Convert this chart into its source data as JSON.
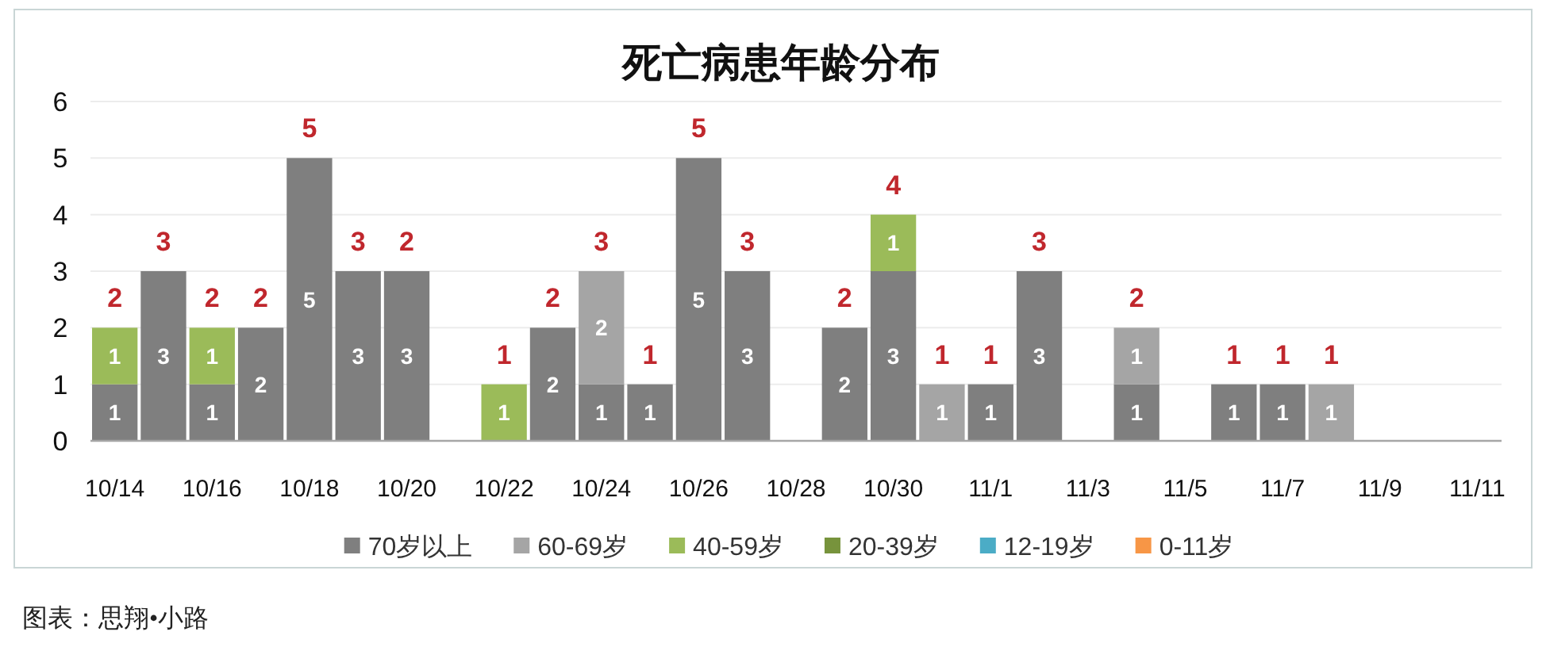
{
  "chart_data": {
    "type": "bar",
    "title": "死亡病患年龄分布",
    "categories": [
      "10/14",
      null,
      "10/16",
      null,
      "10/18",
      null,
      "10/20",
      null,
      "10/22",
      null,
      "10/24",
      null,
      "10/26",
      null,
      "10/28",
      null,
      "10/30",
      null,
      "11/1",
      null,
      "11/3",
      null,
      "11/5",
      null,
      "11/7",
      null,
      "11/9",
      null,
      "11/11"
    ],
    "series": [
      {
        "name": "70岁以上",
        "color": "#7f7f7f",
        "values": [
          1,
          3,
          1,
          2,
          5,
          3,
          3,
          null,
          null,
          2,
          1,
          1,
          5,
          3,
          null,
          2,
          3,
          null,
          1,
          3,
          null,
          1,
          null,
          1,
          1,
          null,
          null,
          null,
          null
        ]
      },
      {
        "name": "60-69岁",
        "color": "#a5a5a5",
        "values": [
          null,
          null,
          null,
          null,
          null,
          null,
          null,
          null,
          null,
          null,
          2,
          null,
          null,
          null,
          null,
          null,
          null,
          1,
          null,
          null,
          null,
          1,
          null,
          null,
          null,
          1,
          null,
          null,
          null
        ]
      },
      {
        "name": "40-59岁",
        "color": "#9bbb59",
        "values": [
          1,
          null,
          1,
          null,
          null,
          null,
          null,
          null,
          1,
          null,
          null,
          null,
          null,
          null,
          null,
          null,
          1,
          null,
          null,
          null,
          null,
          null,
          null,
          null,
          null,
          null,
          null,
          null,
          null
        ]
      },
      {
        "name": "20-39岁",
        "color": "#77933c",
        "values": [
          null,
          null,
          null,
          null,
          null,
          null,
          null,
          null,
          null,
          null,
          null,
          null,
          null,
          null,
          null,
          null,
          null,
          null,
          null,
          null,
          null,
          null,
          null,
          null,
          null,
          null,
          null,
          null,
          null
        ]
      },
      {
        "name": "12-19岁",
        "color": "#4bacc6",
        "values": [
          null,
          null,
          null,
          null,
          null,
          null,
          null,
          null,
          null,
          null,
          null,
          null,
          null,
          null,
          null,
          null,
          null,
          null,
          null,
          null,
          null,
          null,
          null,
          null,
          null,
          null,
          null,
          null,
          null
        ]
      },
      {
        "name": "0-11岁",
        "color": "#f79646",
        "values": [
          null,
          null,
          null,
          null,
          null,
          null,
          null,
          null,
          null,
          null,
          null,
          null,
          null,
          null,
          null,
          null,
          null,
          null,
          null,
          null,
          null,
          null,
          null,
          null,
          null,
          null,
          null,
          null,
          null
        ]
      }
    ],
    "stacked": true,
    "data_labels": true,
    "totals": [
      "2",
      "3",
      "2",
      "2",
      "5",
      "3",
      "2",
      null,
      "1",
      "2",
      "3",
      "1",
      "5",
      "3",
      null,
      "2",
      "4",
      "1",
      "1",
      "3",
      null,
      "2",
      null,
      "1",
      "1",
      "1",
      null,
      null,
      null
    ],
    "ylim": [
      0,
      6
    ],
    "yticks": [
      0,
      1,
      2,
      3,
      4,
      5,
      6
    ],
    "grid": "y",
    "legend": "bottom",
    "annotations": [
      "图表：思翔•小路"
    ]
  }
}
